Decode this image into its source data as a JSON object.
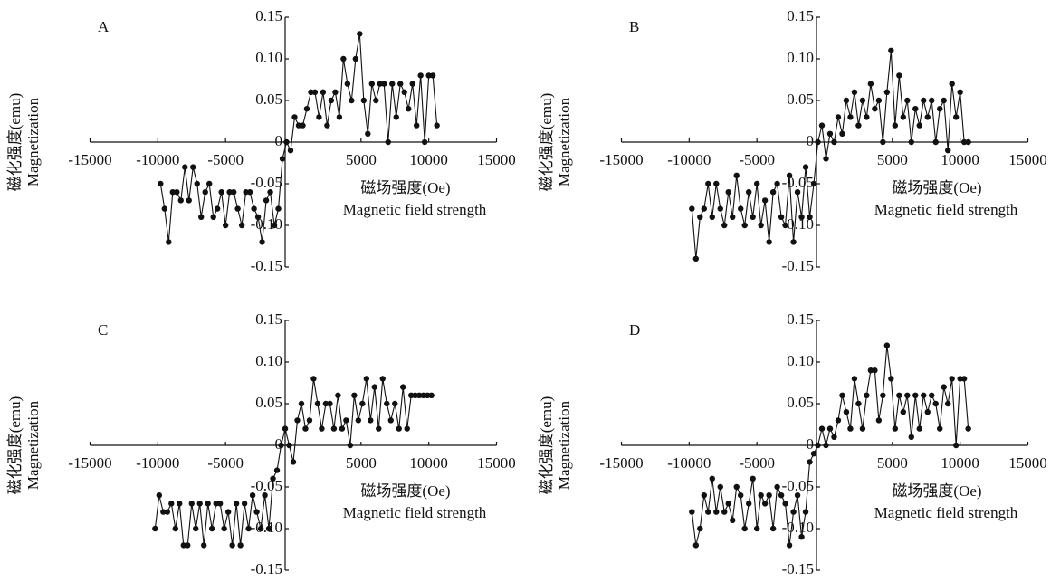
{
  "chart_data": [
    {
      "type": "line",
      "title": "A",
      "xlabel": "磁场强度(Oe)",
      "xlabel_en": "Magnetic field strength",
      "ylabel": "磁化强度(emu)",
      "ylabel_en": "Magnetization",
      "xlim": [
        -15000,
        15000
      ],
      "xticks": [
        -15000,
        -10000,
        -5000,
        5000,
        10000,
        15000
      ],
      "ylim": [
        -0.15,
        0.15
      ],
      "yticks": [
        0.15,
        {
          "value": 0.1,
          "label": "0.10"
        },
        0.05,
        0,
        -0.05,
        {
          "value": -0.1,
          "label": "-0.10"
        },
        -0.15
      ],
      "color": "#111111",
      "x": [
        -9800,
        -9500,
        -9200,
        -8900,
        -8600,
        -8300,
        -8000,
        -7700,
        -7400,
        -7100,
        -6800,
        -6500,
        -6200,
        -5900,
        -5600,
        -5300,
        -5000,
        -4700,
        -4400,
        -4100,
        -3800,
        -3500,
        -3200,
        -2900,
        -2600,
        -2300,
        -2000,
        -1700,
        -1400,
        -1100,
        -800,
        -500,
        -200,
        100,
        400,
        700,
        1000,
        1300,
        1600,
        1900,
        2200,
        2500,
        2800,
        3100,
        3400,
        3700,
        4000,
        4300,
        4600,
        4900,
        5200,
        5500,
        5800,
        6100,
        6400,
        6700,
        7000,
        7300,
        7600,
        7900,
        8200,
        8500,
        8800,
        9100,
        9400,
        9700,
        10000,
        10300,
        10600
      ],
      "values": [
        -0.05,
        -0.08,
        -0.12,
        -0.06,
        -0.06,
        -0.07,
        -0.03,
        -0.07,
        -0.03,
        -0.05,
        -0.09,
        -0.06,
        -0.05,
        -0.09,
        -0.08,
        -0.06,
        -0.1,
        -0.06,
        -0.06,
        -0.08,
        -0.1,
        -0.06,
        -0.06,
        -0.08,
        -0.09,
        -0.12,
        -0.07,
        -0.06,
        -0.1,
        -0.08,
        -0.02,
        0,
        -0.01,
        0.03,
        0.02,
        0.02,
        0.04,
        0.06,
        0.06,
        0.03,
        0.06,
        0.02,
        0.05,
        0.06,
        0.03,
        0.1,
        0.07,
        0.05,
        0.1,
        0.13,
        0.05,
        0.01,
        0.07,
        0.05,
        0.07,
        0.07,
        0.0,
        0.07,
        0.03,
        0.07,
        0.06,
        0.04,
        0.07,
        0.02,
        0.08,
        0.0,
        0.08,
        0.08,
        0.02
      ]
    },
    {
      "type": "line",
      "title": "B",
      "xlabel": "磁场强度(Oe)",
      "xlabel_en": "Magnetic field strength",
      "ylabel": "磁化强度(emu)",
      "ylabel_en": "Magnetization",
      "xlim": [
        -15000,
        15000
      ],
      "xticks": [
        -15000,
        -10000,
        -5000,
        5000,
        10000,
        15000
      ],
      "ylim": [
        -0.15,
        0.15
      ],
      "yticks": [
        0.15,
        {
          "value": 0.1,
          "label": "0.10"
        },
        0.05,
        0,
        -0.05,
        {
          "value": -0.1,
          "label": "-0.10"
        },
        -0.15
      ],
      "color": "#111111",
      "x": [
        -9800,
        -9500,
        -9200,
        -8900,
        -8600,
        -8300,
        -8000,
        -7700,
        -7400,
        -7100,
        -6800,
        -6500,
        -6200,
        -5900,
        -5600,
        -5300,
        -5000,
        -4700,
        -4400,
        -4100,
        -3800,
        -3500,
        -3200,
        -2900,
        -2600,
        -2300,
        -2000,
        -1700,
        -1400,
        -1100,
        -800,
        -500,
        -200,
        100,
        400,
        700,
        1000,
        1300,
        1600,
        1900,
        2200,
        2500,
        2800,
        3100,
        3400,
        3700,
        4000,
        4300,
        4600,
        4900,
        5200,
        5500,
        5800,
        6100,
        6400,
        6700,
        7000,
        7300,
        7600,
        7900,
        8200,
        8500,
        8800,
        9100,
        9400,
        9700,
        10000,
        10300,
        10600
      ],
      "values": [
        -0.08,
        -0.14,
        -0.09,
        -0.08,
        -0.05,
        -0.09,
        -0.05,
        -0.08,
        -0.1,
        -0.06,
        -0.09,
        -0.04,
        -0.08,
        -0.1,
        -0.06,
        -0.09,
        -0.05,
        -0.1,
        -0.07,
        -0.12,
        -0.06,
        -0.05,
        -0.09,
        -0.1,
        -0.04,
        -0.12,
        -0.06,
        -0.09,
        -0.03,
        -0.09,
        -0.05,
        0.0,
        0.02,
        -0.02,
        0.01,
        0.0,
        0.03,
        0.01,
        0.05,
        0.03,
        0.06,
        0.02,
        0.05,
        0.03,
        0.07,
        0.04,
        0.05,
        0.0,
        0.06,
        0.11,
        0.02,
        0.08,
        0.03,
        0.05,
        0.0,
        0.04,
        0.02,
        0.05,
        0.03,
        0.05,
        0.0,
        0.04,
        0.05,
        -0.01,
        0.07,
        0.03,
        0.06,
        0.0,
        0.0
      ]
    },
    {
      "type": "line",
      "title": "C",
      "xlabel": "磁场强度(Oe)",
      "xlabel_en": "Magnetic field strength",
      "ylabel": "磁化强度(emu)",
      "ylabel_en": "Magnetization",
      "xlim": [
        -15000,
        15000
      ],
      "xticks": [
        -15000,
        -10000,
        -5000,
        5000,
        10000,
        15000
      ],
      "ylim": [
        -0.15,
        0.15
      ],
      "yticks": [
        0.15,
        {
          "value": 0.1,
          "label": "0.10"
        },
        0.05,
        0,
        -0.05,
        {
          "value": -0.1,
          "label": "-0.10"
        },
        -0.15
      ],
      "color": "#111111",
      "x": [
        -10200,
        -9900,
        -9600,
        -9300,
        -9000,
        -8700,
        -8400,
        -8100,
        -7800,
        -7500,
        -7200,
        -6900,
        -6600,
        -6300,
        -6000,
        -5700,
        -5400,
        -5100,
        -4800,
        -4500,
        -4200,
        -3900,
        -3600,
        -3300,
        -3000,
        -2700,
        -2400,
        -2100,
        -1800,
        -1500,
        -1200,
        -900,
        -600,
        -300,
        0,
        300,
        600,
        900,
        1200,
        1500,
        1800,
        2100,
        2400,
        2700,
        3000,
        3300,
        3600,
        3900,
        4200,
        4500,
        4800,
        5100,
        5400,
        5700,
        6000,
        6300,
        6600,
        6900,
        7200,
        7500,
        7800,
        8100,
        8400,
        8700,
        9000,
        9300,
        9600,
        9900,
        10200
      ],
      "values": [
        -0.1,
        -0.06,
        -0.08,
        -0.08,
        -0.07,
        -0.1,
        -0.07,
        -0.12,
        -0.12,
        -0.07,
        -0.1,
        -0.07,
        -0.12,
        -0.07,
        -0.1,
        -0.07,
        -0.07,
        -0.1,
        -0.08,
        -0.12,
        -0.07,
        -0.12,
        -0.07,
        -0.1,
        -0.06,
        -0.08,
        -0.1,
        -0.06,
        -0.1,
        -0.04,
        -0.03,
        0.0,
        0.02,
        0.0,
        -0.02,
        0.03,
        0.05,
        0.02,
        0.03,
        0.08,
        0.05,
        0.02,
        0.05,
        0.05,
        0.02,
        0.06,
        0.02,
        0.03,
        0.0,
        0.06,
        0.03,
        0.05,
        0.08,
        0.03,
        0.07,
        0.02,
        0.08,
        0.05,
        0.03,
        0.05,
        0.02,
        0.07,
        0.02,
        0.06,
        0.06,
        0.06,
        0.06,
        0.06,
        0.06
      ]
    },
    {
      "type": "line",
      "title": "D",
      "xlabel": "磁场强度(Oe)",
      "xlabel_en": "Magnetic field strength",
      "ylabel": "磁化强度(emu)",
      "ylabel_en": "Magnetization",
      "xlim": [
        -15000,
        15000
      ],
      "xticks": [
        -15000,
        -10000,
        -5000,
        5000,
        10000,
        15000
      ],
      "ylim": [
        -0.15,
        0.15
      ],
      "yticks": [
        0.15,
        {
          "value": 0.1,
          "label": "0.10"
        },
        0.05,
        0,
        -0.05,
        {
          "value": -0.1,
          "label": "-0.10"
        },
        -0.15
      ],
      "color": "#111111",
      "x": [
        -9800,
        -9500,
        -9200,
        -8900,
        -8600,
        -8300,
        -8000,
        -7700,
        -7400,
        -7100,
        -6800,
        -6500,
        -6200,
        -5900,
        -5600,
        -5300,
        -5000,
        -4700,
        -4400,
        -4100,
        -3800,
        -3500,
        -3200,
        -2900,
        -2600,
        -2300,
        -2000,
        -1700,
        -1400,
        -1100,
        -800,
        -500,
        -200,
        100,
        400,
        700,
        1000,
        1300,
        1600,
        1900,
        2200,
        2500,
        2800,
        3100,
        3400,
        3700,
        4000,
        4300,
        4600,
        4900,
        5200,
        5500,
        5800,
        6100,
        6400,
        6700,
        7000,
        7300,
        7600,
        7900,
        8200,
        8500,
        8800,
        9100,
        9400,
        9700,
        10000,
        10300,
        10600
      ],
      "values": [
        -0.08,
        -0.12,
        -0.1,
        -0.06,
        -0.08,
        -0.04,
        -0.08,
        -0.05,
        -0.08,
        -0.07,
        -0.09,
        -0.05,
        -0.06,
        -0.1,
        -0.07,
        -0.04,
        -0.1,
        -0.06,
        -0.07,
        -0.06,
        -0.1,
        -0.05,
        -0.06,
        -0.07,
        -0.12,
        -0.08,
        -0.06,
        -0.11,
        -0.08,
        -0.02,
        -0.01,
        0.0,
        0.02,
        0.0,
        0.02,
        0.01,
        0.03,
        0.06,
        0.04,
        0.02,
        0.08,
        0.05,
        0.02,
        0.06,
        0.09,
        0.09,
        0.03,
        0.06,
        0.12,
        0.08,
        0.02,
        0.06,
        0.04,
        0.06,
        0.01,
        0.06,
        0.02,
        0.06,
        0.04,
        0.06,
        0.05,
        0.02,
        0.07,
        0.05,
        0.08,
        0.0,
        0.08,
        0.08,
        0.02
      ]
    }
  ]
}
